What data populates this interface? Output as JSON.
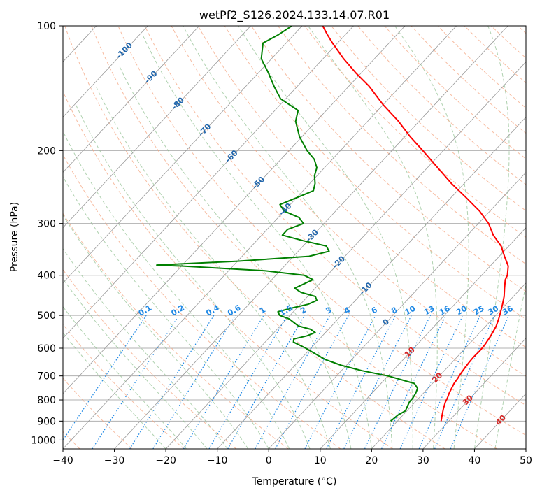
{
  "chart_data": {
    "type": "line",
    "title": "wetPf2_S126.2024.133.14.07.R01",
    "xlabel": "Temperature (°C)",
    "ylabel": "Pressure (hPa)",
    "xlim": [
      -40,
      50
    ],
    "ylim": [
      1050,
      100
    ],
    "y_scale": "log",
    "skew": "skew-T log-P diagram",
    "grid": true,
    "x_ticks": [
      -40,
      -30,
      -20,
      -10,
      0,
      10,
      20,
      30,
      40,
      50
    ],
    "y_ticks": [
      100,
      200,
      300,
      400,
      500,
      600,
      700,
      800,
      900,
      1000
    ],
    "series": [
      {
        "color": "#ff0000",
        "points": [
          [
            900,
            28.5
          ],
          [
            870,
            27.6
          ],
          [
            840,
            26.7
          ],
          [
            810,
            25.9
          ],
          [
            790,
            25.5
          ],
          [
            770,
            25.0
          ],
          [
            750,
            24.6
          ],
          [
            730,
            24.2
          ],
          [
            710,
            24.0
          ],
          [
            690,
            23.7
          ],
          [
            670,
            23.5
          ],
          [
            650,
            23.3
          ],
          [
            630,
            23.2
          ],
          [
            610,
            23.3
          ],
          [
            590,
            23.2
          ],
          [
            570,
            22.9
          ],
          [
            550,
            22.5
          ],
          [
            530,
            22.0
          ],
          [
            510,
            21.2
          ],
          [
            490,
            20.3
          ],
          [
            470,
            19.3
          ],
          [
            450,
            18.2
          ],
          [
            430,
            16.8
          ],
          [
            410,
            15.4
          ],
          [
            400,
            15.0
          ],
          [
            380,
            13.5
          ],
          [
            360,
            11.0
          ],
          [
            340,
            8.5
          ],
          [
            320,
            5.0
          ],
          [
            300,
            2.0
          ],
          [
            280,
            -2.0
          ],
          [
            260,
            -7.0
          ],
          [
            240,
            -12.5
          ],
          [
            220,
            -18.0
          ],
          [
            200,
            -24.0
          ],
          [
            185,
            -29.0
          ],
          [
            170,
            -34.0
          ],
          [
            155,
            -40.0
          ],
          [
            140,
            -46.0
          ],
          [
            130,
            -51.0
          ],
          [
            120,
            -56.0
          ],
          [
            110,
            -61.0
          ],
          [
            105,
            -63.5
          ],
          [
            100,
            -66.0
          ]
        ]
      },
      {
        "color": "#008000",
        "points": [
          [
            900,
            18.7
          ],
          [
            870,
            19.0
          ],
          [
            850,
            19.7
          ],
          [
            830,
            19.3
          ],
          [
            810,
            18.9
          ],
          [
            790,
            18.8
          ],
          [
            770,
            18.5
          ],
          [
            750,
            18.0
          ],
          [
            730,
            16.5
          ],
          [
            700,
            10.0
          ],
          [
            680,
            4.0
          ],
          [
            660,
            -1.0
          ],
          [
            640,
            -5.0
          ],
          [
            620,
            -8.0
          ],
          [
            600,
            -11.0
          ],
          [
            580,
            -14.5
          ],
          [
            570,
            -15.0
          ],
          [
            560,
            -13.0
          ],
          [
            550,
            -12.0
          ],
          [
            540,
            -13.5
          ],
          [
            530,
            -16.5
          ],
          [
            510,
            -19.5
          ],
          [
            500,
            -22.0
          ],
          [
            490,
            -23.0
          ],
          [
            480,
            -21.0
          ],
          [
            470,
            -18.5
          ],
          [
            460,
            -17.5
          ],
          [
            450,
            -18.5
          ],
          [
            440,
            -22.0
          ],
          [
            430,
            -24.0
          ],
          [
            420,
            -23.0
          ],
          [
            410,
            -22.0
          ],
          [
            400,
            -24.5
          ],
          [
            390,
            -33.0
          ],
          [
            380,
            -50.0
          ],
          [
            378,
            -55.0
          ],
          [
            370,
            -40.0
          ],
          [
            360,
            -27.0
          ],
          [
            350,
            -24.0
          ],
          [
            340,
            -25.5
          ],
          [
            330,
            -31.0
          ],
          [
            320,
            -36.0
          ],
          [
            310,
            -36.0
          ],
          [
            300,
            -34.0
          ],
          [
            290,
            -36.0
          ],
          [
            280,
            -40.0
          ],
          [
            270,
            -42.0
          ],
          [
            260,
            -40.0
          ],
          [
            250,
            -38.0
          ],
          [
            240,
            -39.0
          ],
          [
            230,
            -40.5
          ],
          [
            220,
            -41.5
          ],
          [
            210,
            -43.5
          ],
          [
            200,
            -46.5
          ],
          [
            185,
            -50.5
          ],
          [
            170,
            -54.0
          ],
          [
            160,
            -55.5
          ],
          [
            150,
            -61.0
          ],
          [
            140,
            -64.5
          ],
          [
            130,
            -68.0
          ],
          [
            120,
            -72.0
          ],
          [
            110,
            -74.5
          ],
          [
            105,
            -73.0
          ],
          [
            100,
            -72.0
          ]
        ]
      }
    ],
    "dry_adiabat_labels": [
      -100,
      -90,
      -80,
      -70,
      -60,
      -50,
      -40,
      -30,
      -20,
      -10,
      0,
      10,
      20,
      30,
      40
    ],
    "mixing_ratio_labels": [
      "0.1",
      "0.2",
      "0.4",
      "0.6",
      "1",
      "1.5",
      "2",
      "3",
      "4",
      "6",
      "8",
      "10",
      "13",
      "16",
      "20",
      "25",
      "30",
      "36"
    ],
    "colors": {
      "temperature": "#ff0000",
      "dewpoint": "#008000",
      "isotherm_grid": "#999999",
      "dry_adiabat": "#f4a582",
      "moist_adiabat": "#8fbf8f",
      "mixing_ratio": "#1e88e5",
      "adiabat_label": "#2166ac",
      "warm_label": "#d62728"
    }
  }
}
